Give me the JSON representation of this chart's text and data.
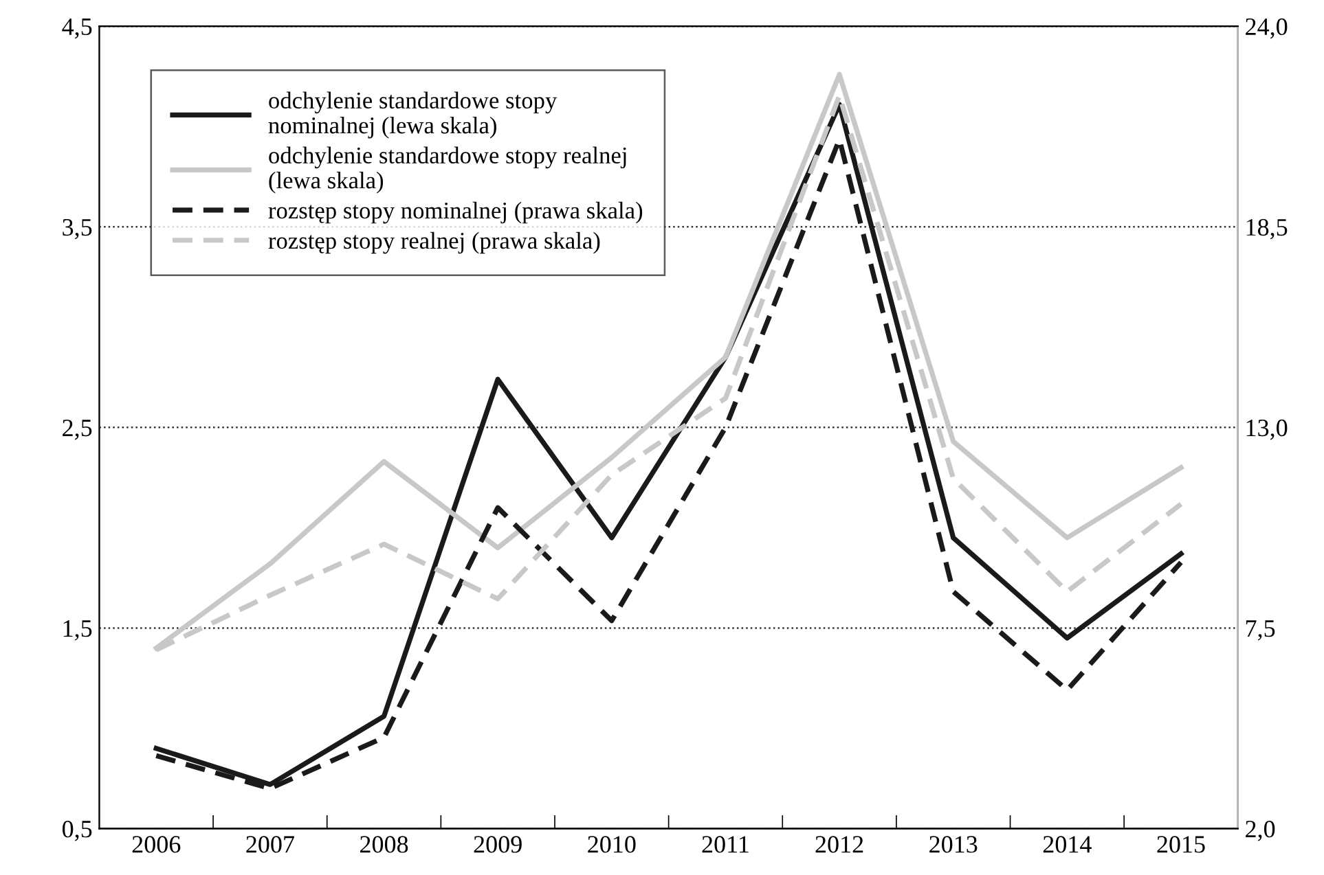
{
  "chart_data": {
    "type": "line",
    "categories": [
      "2006",
      "2007",
      "2008",
      "2009",
      "2010",
      "2011",
      "2012",
      "2013",
      "2014",
      "2015"
    ],
    "series": [
      {
        "name": "odchylenie standardowe stopy\nnominalnej (lewa skala)",
        "color": "#1a1a1a",
        "line_style": "solid",
        "values": [
          0.9,
          0.72,
          1.06,
          2.74,
          1.95,
          2.85,
          4.11,
          1.95,
          1.45,
          1.87
        ]
      },
      {
        "name": "odchylenie standardowe stopy realnej\n(lewa skala)",
        "color": "#c8c8c8",
        "line_style": "solid",
        "values": [
          1.4,
          1.82,
          2.33,
          1.9,
          2.35,
          2.85,
          4.26,
          2.43,
          1.95,
          2.3
        ]
      },
      {
        "name": "rozstęp stopy nominalnej (prawa skala)",
        "color": "#1a1a1a",
        "line_style": "dashed",
        "axis": "y2",
        "values": [
          4.0,
          3.1,
          4.5,
          10.8,
          7.7,
          13.0,
          20.9,
          8.5,
          5.8,
          9.3
        ]
      },
      {
        "name": "rozstęp stopy realnej (prawa skala)",
        "color": "#c8c8c8",
        "line_style": "dashed",
        "axis": "y2",
        "values": [
          6.9,
          8.4,
          9.8,
          8.3,
          11.7,
          13.8,
          22.1,
          11.6,
          8.5,
          10.9
        ]
      }
    ],
    "ylim": [
      0.5,
      4.5
    ],
    "yticks": [
      {
        "value": 0.5,
        "label": "0,5"
      },
      {
        "value": 1.5,
        "label": "1,5"
      },
      {
        "value": 2.5,
        "label": "2,5"
      },
      {
        "value": 3.5,
        "label": "3,5"
      },
      {
        "value": 4.5,
        "label": "4,5"
      }
    ],
    "y2lim": [
      2.0,
      24.0
    ],
    "y2ticks": [
      {
        "value": 2.0,
        "label": "2,0"
      },
      {
        "value": 7.5,
        "label": "7,5"
      },
      {
        "value": 13.0,
        "label": "13,0"
      },
      {
        "value": 18.5,
        "label": "18,5"
      },
      {
        "value": 24.0,
        "label": "24,0"
      }
    ],
    "grid": "y",
    "legend": "top left",
    "marker": "none"
  }
}
